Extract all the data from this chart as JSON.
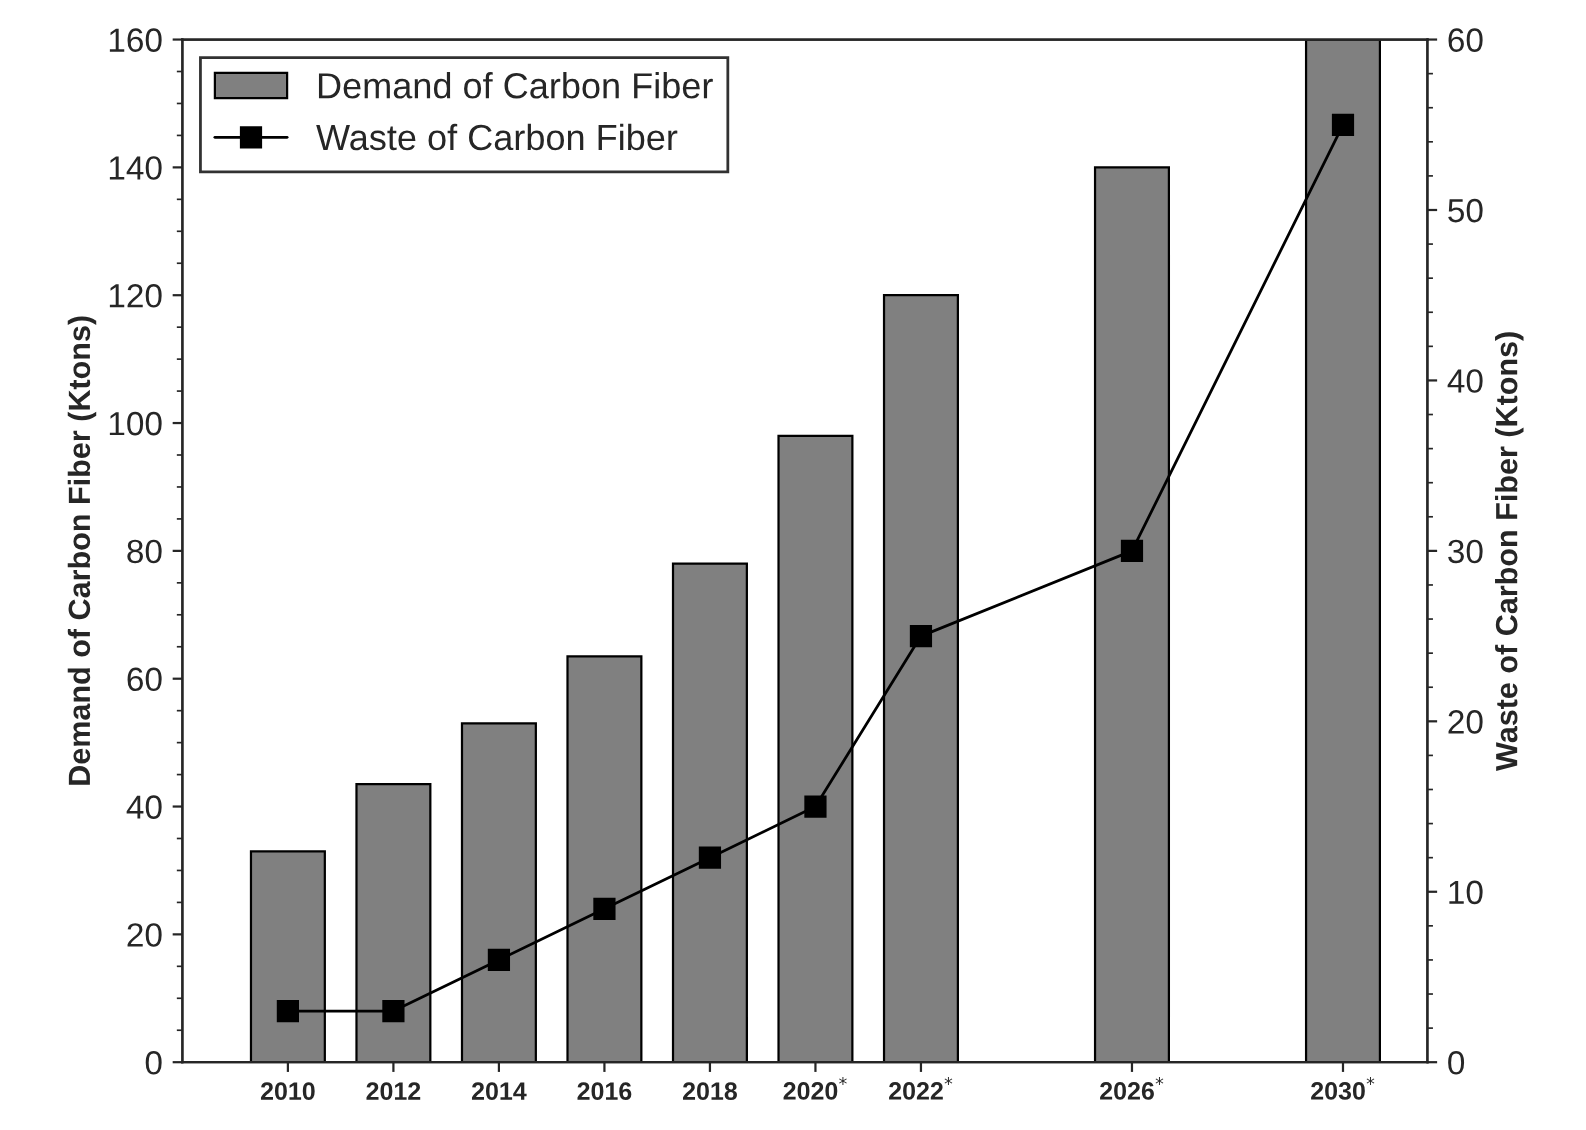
{
  "chart_data": {
    "type": "bar",
    "x": [
      2010,
      2012,
      2014,
      2016,
      2018,
      2020,
      2022,
      2026,
      2030
    ],
    "xlim": [
      2008,
      2031.6
    ],
    "xticks": [
      {
        "value": 2010,
        "label": "2010"
      },
      {
        "value": 2012,
        "label": "2012"
      },
      {
        "value": 2014,
        "label": "2014"
      },
      {
        "value": 2016,
        "label": "2016"
      },
      {
        "value": 2018,
        "label": "2018"
      },
      {
        "value": 2020,
        "label": "2020$^{*}$"
      },
      {
        "value": 2022,
        "label": "2022$^{*}$"
      },
      {
        "value": 2026,
        "label": "2026$^{*}$"
      },
      {
        "value": 2030,
        "label": "2030$^{*}$"
      }
    ],
    "ylabel": "Demand of Carbon Fiber (Ktons)",
    "y2label": "Waste of Carbon Fiber (Ktons)",
    "ylim": [
      0,
      160
    ],
    "yticks": [
      0,
      20,
      40,
      60,
      80,
      100,
      120,
      140,
      160
    ],
    "y2lim": [
      0,
      60
    ],
    "y2ticks": [
      0,
      10,
      20,
      30,
      40,
      50,
      60
    ],
    "series": [
      {
        "name": "Demand of Carbon Fiber",
        "color": "#808080",
        "values": [
          33,
          43.5,
          53,
          63.5,
          78,
          98,
          120,
          140,
          160
        ]
      },
      {
        "name": "Waste of Carbon Fiber",
        "type": "line",
        "axis": "y2",
        "color": "#000000",
        "marker": "square",
        "values": [
          3,
          3,
          6,
          9,
          12,
          15,
          25,
          30,
          55
        ]
      }
    ],
    "legend": "top left",
    "grid": false
  }
}
